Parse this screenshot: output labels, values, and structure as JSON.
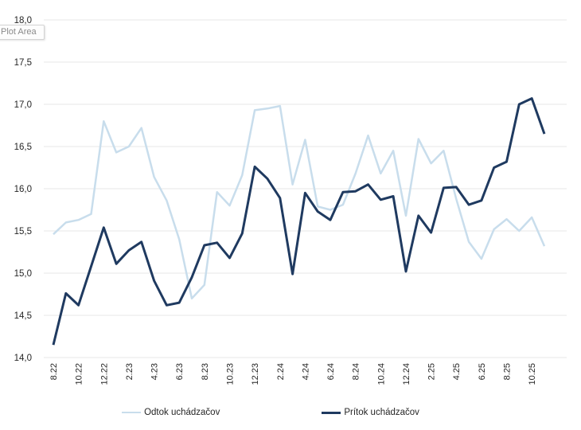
{
  "plot_area_tooltip": "Plot Area",
  "chart_data": {
    "type": "line",
    "title": "",
    "xlabel": "",
    "ylabel": "",
    "ylim": [
      14.0,
      18.0
    ],
    "ytick_step": 0.5,
    "ytick_labels": [
      "18,0",
      "17,5",
      "17,0",
      "16,5",
      "16,0",
      "15,5",
      "15,0",
      "14,5",
      "14,0"
    ],
    "ytick_values": [
      18.0,
      17.5,
      17.0,
      16.5,
      16.0,
      15.5,
      15.0,
      14.5,
      14.0
    ],
    "grid": true,
    "legend_position": "bottom",
    "x": [
      "8.22",
      "9.22",
      "10.22",
      "11.22",
      "12.22",
      "1.23",
      "2.23",
      "3.23",
      "4.23",
      "5.23",
      "6.23",
      "7.23",
      "8.23",
      "9.23",
      "10.23",
      "11.23",
      "12.23",
      "1.24",
      "2.24",
      "3.24",
      "4.24",
      "5.24",
      "6.24",
      "7.24",
      "8.24",
      "9.24",
      "10.24",
      "11.24",
      "12.24",
      "1.25",
      "2.25",
      "3.25",
      "4.25",
      "5.25",
      "6.25",
      "7.25",
      "8.25",
      "9.25",
      "10.25",
      "11.25"
    ],
    "x_tick_labels": [
      "8.22",
      "10.22",
      "12.22",
      "2.23",
      "4.23",
      "6.23",
      "8.23",
      "10.23",
      "12.23",
      "2.24",
      "4.24",
      "6.24",
      "8.24",
      "10.24",
      "12.24",
      "2.25",
      "4.25",
      "6.25",
      "8.25",
      "10.25"
    ],
    "x_tick_every": 2,
    "series": [
      {
        "name": "Odtok uchádzačov",
        "color": "#c8ddec",
        "values": [
          15.46,
          15.6,
          15.63,
          15.7,
          16.8,
          16.43,
          16.5,
          16.72,
          16.14,
          15.86,
          15.4,
          14.7,
          14.86,
          15.96,
          15.8,
          16.16,
          16.93,
          16.95,
          16.98,
          16.05,
          16.58,
          15.79,
          15.75,
          15.81,
          16.18,
          16.63,
          16.18,
          16.45,
          15.68,
          16.59,
          16.3,
          16.45,
          15.88,
          15.37,
          15.17,
          15.52,
          15.64,
          15.5,
          15.66,
          15.32
        ]
      },
      {
        "name": "Prítok uchádzačov",
        "color": "#1f3a60",
        "values": [
          14.15,
          14.76,
          14.62,
          15.08,
          15.54,
          15.11,
          15.27,
          15.37,
          14.91,
          14.62,
          14.65,
          14.95,
          15.33,
          15.36,
          15.18,
          15.47,
          16.26,
          16.12,
          15.89,
          14.99,
          15.95,
          15.73,
          15.63,
          15.96,
          15.97,
          16.05,
          15.87,
          15.91,
          15.02,
          15.68,
          15.48,
          16.01,
          16.02,
          15.81,
          15.86,
          16.25,
          16.32,
          17.0,
          17.07,
          16.65
        ]
      }
    ]
  }
}
